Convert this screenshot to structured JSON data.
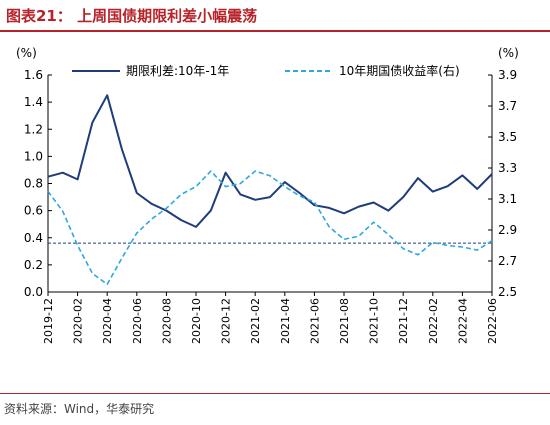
{
  "figure": {
    "title": "图表21： 上周国债期限利差小幅震荡",
    "source": "资料来源：Wind，华泰研究"
  },
  "colors": {
    "accent": "#b8232a",
    "spread_line": "#1f3d7a",
    "yield_line": "#2ea7e0",
    "ref_line": "#1f3d7a"
  },
  "chart_data": {
    "type": "line",
    "left_unit": "(%)",
    "right_unit": "(%)",
    "left_ylim": [
      0.0,
      1.6
    ],
    "left_ticks": [
      "0.0",
      "0.2",
      "0.4",
      "0.6",
      "0.8",
      "1.0",
      "1.2",
      "1.4",
      "1.6"
    ],
    "right_ylim": [
      2.5,
      3.9
    ],
    "right_ticks": [
      "2.5",
      "2.7",
      "2.9",
      "3.1",
      "3.3",
      "3.5",
      "3.7",
      "3.9"
    ],
    "x_ticks": [
      "2019-12",
      "2020-02",
      "2020-04",
      "2020-06",
      "2020-08",
      "2020-10",
      "2020-12",
      "2021-02",
      "2021-04",
      "2021-06",
      "2021-08",
      "2021-10",
      "2021-12",
      "2022-02",
      "2022-04",
      "2022-06"
    ],
    "reference_value": 0.36,
    "series": [
      {
        "name": "期限利差:10年-1年",
        "axis": "left",
        "style": "solid",
        "x": [
          "2019-12",
          "2020-01",
          "2020-02",
          "2020-03",
          "2020-04",
          "2020-05",
          "2020-06",
          "2020-07",
          "2020-08",
          "2020-09",
          "2020-10",
          "2020-11",
          "2020-12",
          "2021-01",
          "2021-02",
          "2021-03",
          "2021-04",
          "2021-05",
          "2021-06",
          "2021-07",
          "2021-08",
          "2021-09",
          "2021-10",
          "2021-11",
          "2021-12",
          "2022-01",
          "2022-02",
          "2022-03",
          "2022-04",
          "2022-05",
          "2022-06"
        ],
        "values": [
          0.85,
          0.88,
          0.83,
          1.25,
          1.45,
          1.05,
          0.73,
          0.65,
          0.6,
          0.53,
          0.48,
          0.6,
          0.88,
          0.72,
          0.68,
          0.7,
          0.81,
          0.73,
          0.64,
          0.62,
          0.58,
          0.63,
          0.66,
          0.6,
          0.7,
          0.84,
          0.74,
          0.78,
          0.86,
          0.76,
          0.87
        ]
      },
      {
        "name": "10年期国债收益率(右)",
        "axis": "right",
        "style": "dashed",
        "x": [
          "2019-12",
          "2020-01",
          "2020-02",
          "2020-03",
          "2020-04",
          "2020-05",
          "2020-06",
          "2020-07",
          "2020-08",
          "2020-09",
          "2020-10",
          "2020-11",
          "2020-12",
          "2021-01",
          "2021-02",
          "2021-03",
          "2021-04",
          "2021-05",
          "2021-06",
          "2021-07",
          "2021-08",
          "2021-09",
          "2021-10",
          "2021-11",
          "2021-12",
          "2022-01",
          "2022-02",
          "2022-03",
          "2022-04",
          "2022-05",
          "2022-06"
        ],
        "values": [
          3.15,
          3.02,
          2.8,
          2.62,
          2.55,
          2.72,
          2.88,
          2.97,
          3.04,
          3.13,
          3.18,
          3.28,
          3.18,
          3.2,
          3.28,
          3.25,
          3.18,
          3.12,
          3.08,
          2.92,
          2.84,
          2.86,
          2.95,
          2.87,
          2.78,
          2.74,
          2.82,
          2.8,
          2.79,
          2.77,
          2.83
        ]
      }
    ],
    "legend_position": "top"
  }
}
